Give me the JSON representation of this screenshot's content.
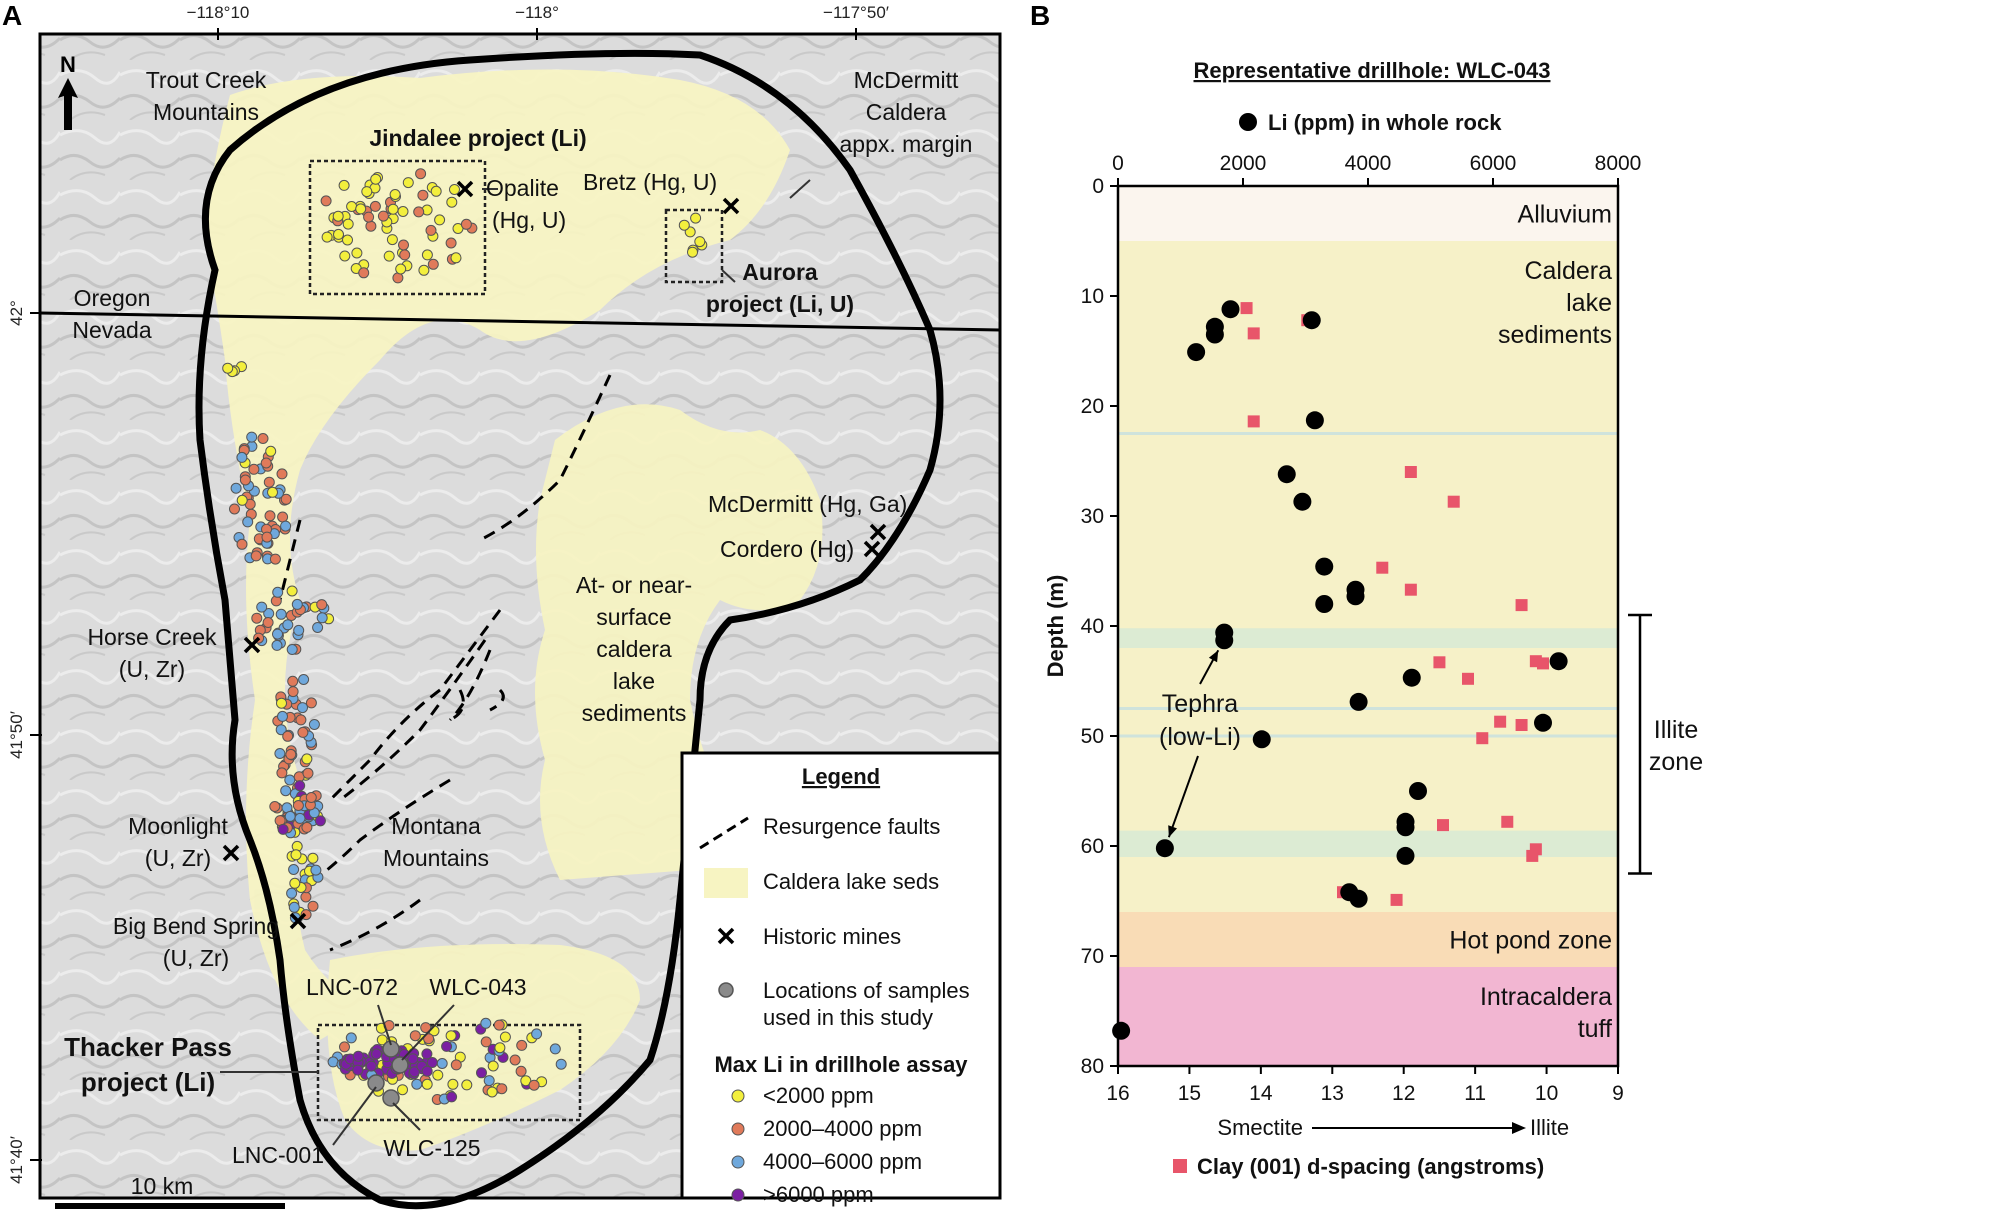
{
  "panels": {
    "a": "A",
    "b": "B"
  },
  "map": {
    "coords_top": [
      {
        "label": "−118°10",
        "lon": -118.1667
      },
      {
        "label": "−118°",
        "lon": -118.0
      },
      {
        "label": "−117°50′",
        "lon": -117.8333
      }
    ],
    "coords_left": [
      {
        "label": "42°",
        "lat": 42.0
      },
      {
        "label": "41°50′",
        "lat": 41.8333
      },
      {
        "label": "41°40′",
        "lat": 41.6667
      }
    ],
    "north": "N",
    "labels": {
      "trout_creek": [
        "Trout Creek",
        "Mountains"
      ],
      "mcdermitt_caldera": [
        "McDermitt",
        "Caldera",
        "appx. margin"
      ],
      "jindalee": "Jindalee project (Li)",
      "opalite": [
        "Opalite",
        "(Hg, U)"
      ],
      "bretz": "Bretz (Hg, U)",
      "aurora": [
        "Aurora",
        "project (Li, U)"
      ],
      "oregon": "Oregon",
      "nevada": "Nevada",
      "mcdermitt_mine": "McDermitt (Hg, Ga)",
      "cordero": "Cordero (Hg)",
      "horse_creek": [
        "Horse Creek",
        "(U, Zr)"
      ],
      "lake_seds": [
        "At- or near-",
        "surface",
        "caldera",
        "lake",
        "sediments"
      ],
      "moonlight": [
        "Moonlight",
        "(U, Zr)"
      ],
      "montana": [
        "Montana",
        "Mountains"
      ],
      "big_bend": [
        "Big Bend Spring",
        "(U, Zr)"
      ],
      "lnc072": "LNC-072",
      "wlc043": "WLC-043",
      "thacker": [
        "Thacker Pass",
        "project (Li)"
      ],
      "lnc001": "LNC-001",
      "wlc125": "WLC-125",
      "scale": "10 km"
    },
    "legend": {
      "title": "Legend",
      "faults": "Resurgence faults",
      "lake": "Caldera lake seds",
      "mines": "Historic mines",
      "samples": [
        "Locations of samples",
        "used in this study"
      ],
      "li_title": "Max Li in drillhole assay",
      "classes": [
        {
          "label": "<2000 ppm",
          "color": "#f3ef3d"
        },
        {
          "label": "2000–4000 ppm",
          "color": "#e07a5a"
        },
        {
          "label": "4000–6000 ppm",
          "color": "#6fa8dc"
        },
        {
          "label": ">6000 ppm",
          "color": "#7b1fa2"
        }
      ]
    },
    "colors": {
      "lake": "#f7f4c2",
      "outline": "#000000",
      "relief": "#d4d4d4"
    }
  },
  "chart_data": {
    "type": "scatter",
    "title": "Representative drillhole: WLC-043",
    "ylabel": "Depth (m)",
    "ylim": [
      0,
      80
    ],
    "yticks": [
      0,
      10,
      20,
      30,
      40,
      50,
      60,
      70,
      80
    ],
    "li_axis": {
      "label": "Li (ppm) in whole rock",
      "lim": [
        0,
        8000
      ],
      "ticks": [
        0,
        2000,
        4000,
        6000,
        8000
      ]
    },
    "clay_axis": {
      "label": "Clay (001) d-spacing (angstroms)",
      "lim": [
        16,
        9
      ],
      "ticks": [
        16,
        15,
        14,
        13,
        12,
        11,
        10,
        9
      ],
      "caption_left": "Smectite",
      "caption_right": "Illite"
    },
    "zones": [
      {
        "name": "Alluvium",
        "from": 0,
        "to": 5,
        "color": "#fbf5ee"
      },
      {
        "name": "Caldera lake sediments",
        "lines": [
          "Caldera",
          "lake",
          "sediments"
        ],
        "from": 5,
        "to": 66,
        "color": "#f6f1c8"
      },
      {
        "name": "Hot pond zone",
        "from": 66,
        "to": 71,
        "color": "#f9dcb6"
      },
      {
        "name": "Intracaldera tuff",
        "lines": [
          "Intracaldera",
          "tuff"
        ],
        "from": 71,
        "to": 80,
        "color": "#f2b6d2"
      }
    ],
    "tephra_bands": [
      {
        "from": 40.2,
        "to": 42.0
      },
      {
        "from": 58.6,
        "to": 61.0
      }
    ],
    "tephra_lines": [
      22.5,
      47.5,
      50.0
    ],
    "tephra_label": [
      "Tephra",
      "(low-Li)"
    ],
    "illite_zone": {
      "label": [
        "Illite",
        "zone"
      ],
      "from": 39,
      "to": 62.5
    },
    "li_series": {
      "name": "Li (ppm) in whole rock",
      "color": "#000000",
      "points": [
        {
          "x": 1800,
          "y": 11.2
        },
        {
          "x": 3100,
          "y": 12.2
        },
        {
          "x": 1550,
          "y": 12.8
        },
        {
          "x": 1550,
          "y": 13.5
        },
        {
          "x": 1250,
          "y": 15.1
        },
        {
          "x": 3150,
          "y": 21.3
        },
        {
          "x": 2700,
          "y": 26.2
        },
        {
          "x": 2950,
          "y": 28.7
        },
        {
          "x": 3300,
          "y": 34.6
        },
        {
          "x": 3800,
          "y": 36.7
        },
        {
          "x": 3800,
          "y": 37.3
        },
        {
          "x": 3300,
          "y": 38.0
        },
        {
          "x": 1700,
          "y": 40.6
        },
        {
          "x": 1700,
          "y": 41.3
        },
        {
          "x": 7050,
          "y": 43.2
        },
        {
          "x": 4700,
          "y": 44.7
        },
        {
          "x": 3850,
          "y": 46.9
        },
        {
          "x": 6800,
          "y": 48.8
        },
        {
          "x": 2300,
          "y": 50.3
        },
        {
          "x": 4800,
          "y": 55.0
        },
        {
          "x": 4600,
          "y": 57.8
        },
        {
          "x": 4600,
          "y": 58.3
        },
        {
          "x": 750,
          "y": 60.2
        },
        {
          "x": 4600,
          "y": 60.9
        },
        {
          "x": 3700,
          "y": 64.2
        },
        {
          "x": 3850,
          "y": 64.8
        },
        {
          "x": 50,
          "y": 76.8
        }
      ]
    },
    "clay_series": {
      "name": "Clay (001) d-spacing (angstroms)",
      "color": "#e8556a",
      "points": [
        {
          "x": 14.2,
          "y": 11.1
        },
        {
          "x": 13.35,
          "y": 12.2
        },
        {
          "x": 14.1,
          "y": 13.4
        },
        {
          "x": 14.1,
          "y": 21.4
        },
        {
          "x": 11.9,
          "y": 26.0
        },
        {
          "x": 11.3,
          "y": 28.7
        },
        {
          "x": 12.3,
          "y": 34.7
        },
        {
          "x": 11.9,
          "y": 36.7
        },
        {
          "x": 10.35,
          "y": 38.1
        },
        {
          "x": 11.5,
          "y": 43.3
        },
        {
          "x": 11.1,
          "y": 44.8
        },
        {
          "x": 10.15,
          "y": 43.2
        },
        {
          "x": 10.05,
          "y": 43.4
        },
        {
          "x": 10.65,
          "y": 48.7
        },
        {
          "x": 10.35,
          "y": 49.0
        },
        {
          "x": 10.9,
          "y": 50.2
        },
        {
          "x": 11.45,
          "y": 58.1
        },
        {
          "x": 10.55,
          "y": 57.8
        },
        {
          "x": 10.15,
          "y": 60.3
        },
        {
          "x": 10.2,
          "y": 60.9
        },
        {
          "x": 12.85,
          "y": 64.2
        },
        {
          "x": 12.1,
          "y": 64.9
        }
      ]
    }
  }
}
